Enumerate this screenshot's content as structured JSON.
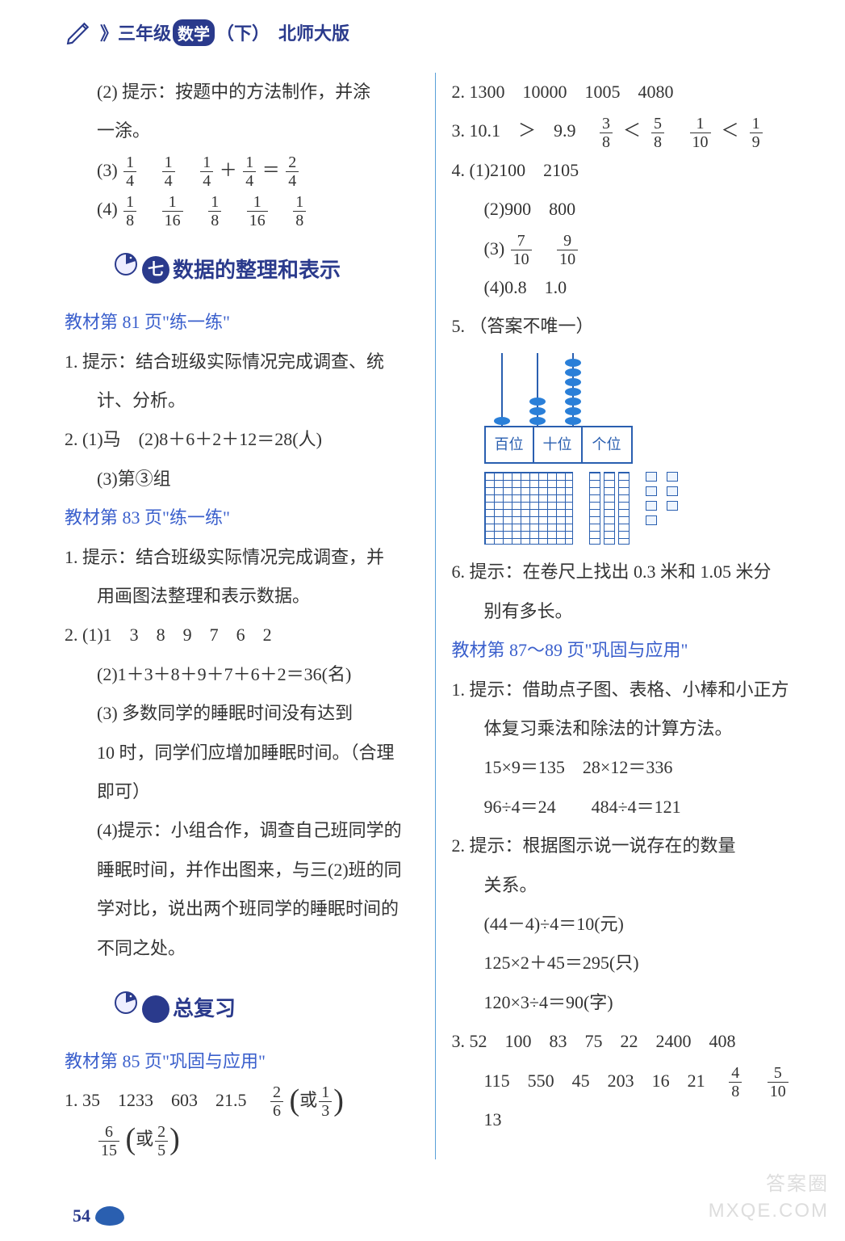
{
  "colors": {
    "brand": "#2a3a8c",
    "link": "#3a5fcc",
    "rule": "#5aa0d8",
    "block": "#2a5fb0",
    "text": "#333333",
    "bg": "#ffffff",
    "watermark": "#dddddd"
  },
  "header": {
    "grade_prefix": "》三年级",
    "badge": "数学",
    "suffix": "（下）　北师大版"
  },
  "left": {
    "l1": "(2) 提示：按题中的方法制作，并涂",
    "l2": "一涂。",
    "l3_pre": "(3)",
    "l3_frac1": {
      "n": "1",
      "d": "4"
    },
    "l3_frac2": {
      "n": "1",
      "d": "4"
    },
    "l3_frac3": {
      "n": "1",
      "d": "4"
    },
    "l3_plus": "＋",
    "l3_frac4": {
      "n": "1",
      "d": "4"
    },
    "l3_eq": "＝",
    "l3_frac5": {
      "n": "2",
      "d": "4"
    },
    "l4_pre": "(4)",
    "l4_frac1": {
      "n": "1",
      "d": "8"
    },
    "l4_frac2": {
      "n": "1",
      "d": "16"
    },
    "l4_frac3": {
      "n": "1",
      "d": "8"
    },
    "l4_frac4": {
      "n": "1",
      "d": "16"
    },
    "l4_frac5": {
      "n": "1",
      "d": "8"
    },
    "section7": {
      "num": "七",
      "title": "数据的整理和表示"
    },
    "p81": "教材第 81 页\"练一练\"",
    "p81_1": "1. 提示：结合班级实际情况完成调查、统",
    "p81_1b": "计、分析。",
    "p81_2": "2. (1)马　(2)8＋6＋2＋12＝28(人)",
    "p81_2b": "(3)第③组",
    "p83": "教材第 83 页\"练一练\"",
    "p83_1": "1. 提示：结合班级实际情况完成调查，并",
    "p83_1b": "用画图法整理和表示数据。",
    "p83_2": "2. (1)1　3　8　9　7　6　2",
    "p83_2b": "(2)1＋3＋8＋9＋7＋6＋2＝36(名)",
    "p83_2c": "(3) 多数同学的睡眠时间没有达到",
    "p83_2c2": "10 时，同学们应增加睡眠时间。（合理",
    "p83_2c3": "即可）",
    "p83_2d": "(4)提示：小组合作，调查自己班同学的",
    "p83_2d2": "睡眠时间，并作出图来，与三(2)班的同",
    "p83_2d3": "学对比，说出两个班同学的睡眠时间的",
    "p83_2d4": "不同之处。",
    "section_review": "总复习",
    "p85": "教材第 85 页\"巩固与应用\"",
    "p85_1_pre": "1. 35　1233　603　21.5　",
    "p85_1_f1": {
      "n": "2",
      "d": "6"
    },
    "p85_1_or1": "或",
    "p85_1_f2": {
      "n": "1",
      "d": "3"
    },
    "p85_1_f3": {
      "n": "6",
      "d": "15"
    },
    "p85_1_or2": "或",
    "p85_1_f4": {
      "n": "2",
      "d": "5"
    }
  },
  "right": {
    "l1": "2. 1300　10000　1005　4080",
    "l2_pre": "3. 10.1　＞　9.9　",
    "l2_f1": {
      "n": "3",
      "d": "8"
    },
    "l2_lt1": "＜",
    "l2_f2": {
      "n": "5",
      "d": "8"
    },
    "l2_f3": {
      "n": "1",
      "d": "10"
    },
    "l2_lt2": "＜",
    "l2_f4": {
      "n": "1",
      "d": "9"
    },
    "l3": "4. (1)2100　2105",
    "l3b": "(2)900　800",
    "l3c_pre": "(3)",
    "l3c_f1": {
      "n": "7",
      "d": "10"
    },
    "l3c_f2": {
      "n": "9",
      "d": "10"
    },
    "l3d": "(4)0.8　1.0",
    "l4": "5. （答案不唯一）",
    "abacus": {
      "labels": [
        "百位",
        "十位",
        "个位"
      ],
      "beads": [
        1,
        3,
        7
      ]
    },
    "blocks": {
      "hundreds": 1,
      "tens": 3,
      "ones": 7
    },
    "l5": "6. 提示：在卷尺上找出 0.3 米和 1.05 米分",
    "l5b": "别有多长。",
    "p87": "教材第 87～89 页\"巩固与应用\"",
    "p87_1": "1. 提示：借助点子图、表格、小棒和小正方",
    "p87_1b": "体复习乘法和除法的计算方法。",
    "p87_1c": "15×9＝135　28×12＝336",
    "p87_1d": "96÷4＝24　　484÷4＝121",
    "p87_2": "2. 提示：根据图示说一说存在的数量",
    "p87_2b": "关系。",
    "p87_2c": "(44－4)÷4＝10(元)",
    "p87_2d": "125×2＋45＝295(只)",
    "p87_2e": "120×3÷4＝90(字)",
    "p87_3a": "3. 52　100　83　75　22　2400　408",
    "p87_3b_pre": "115　550　45　203　16　21　",
    "p87_3b_f1": {
      "n": "4",
      "d": "8"
    },
    "p87_3b_f2": {
      "n": "5",
      "d": "10"
    },
    "p87_3c": "13"
  },
  "page_number": "54",
  "watermark": {
    "line1": "答案圈",
    "line2": "MXQE.COM"
  }
}
